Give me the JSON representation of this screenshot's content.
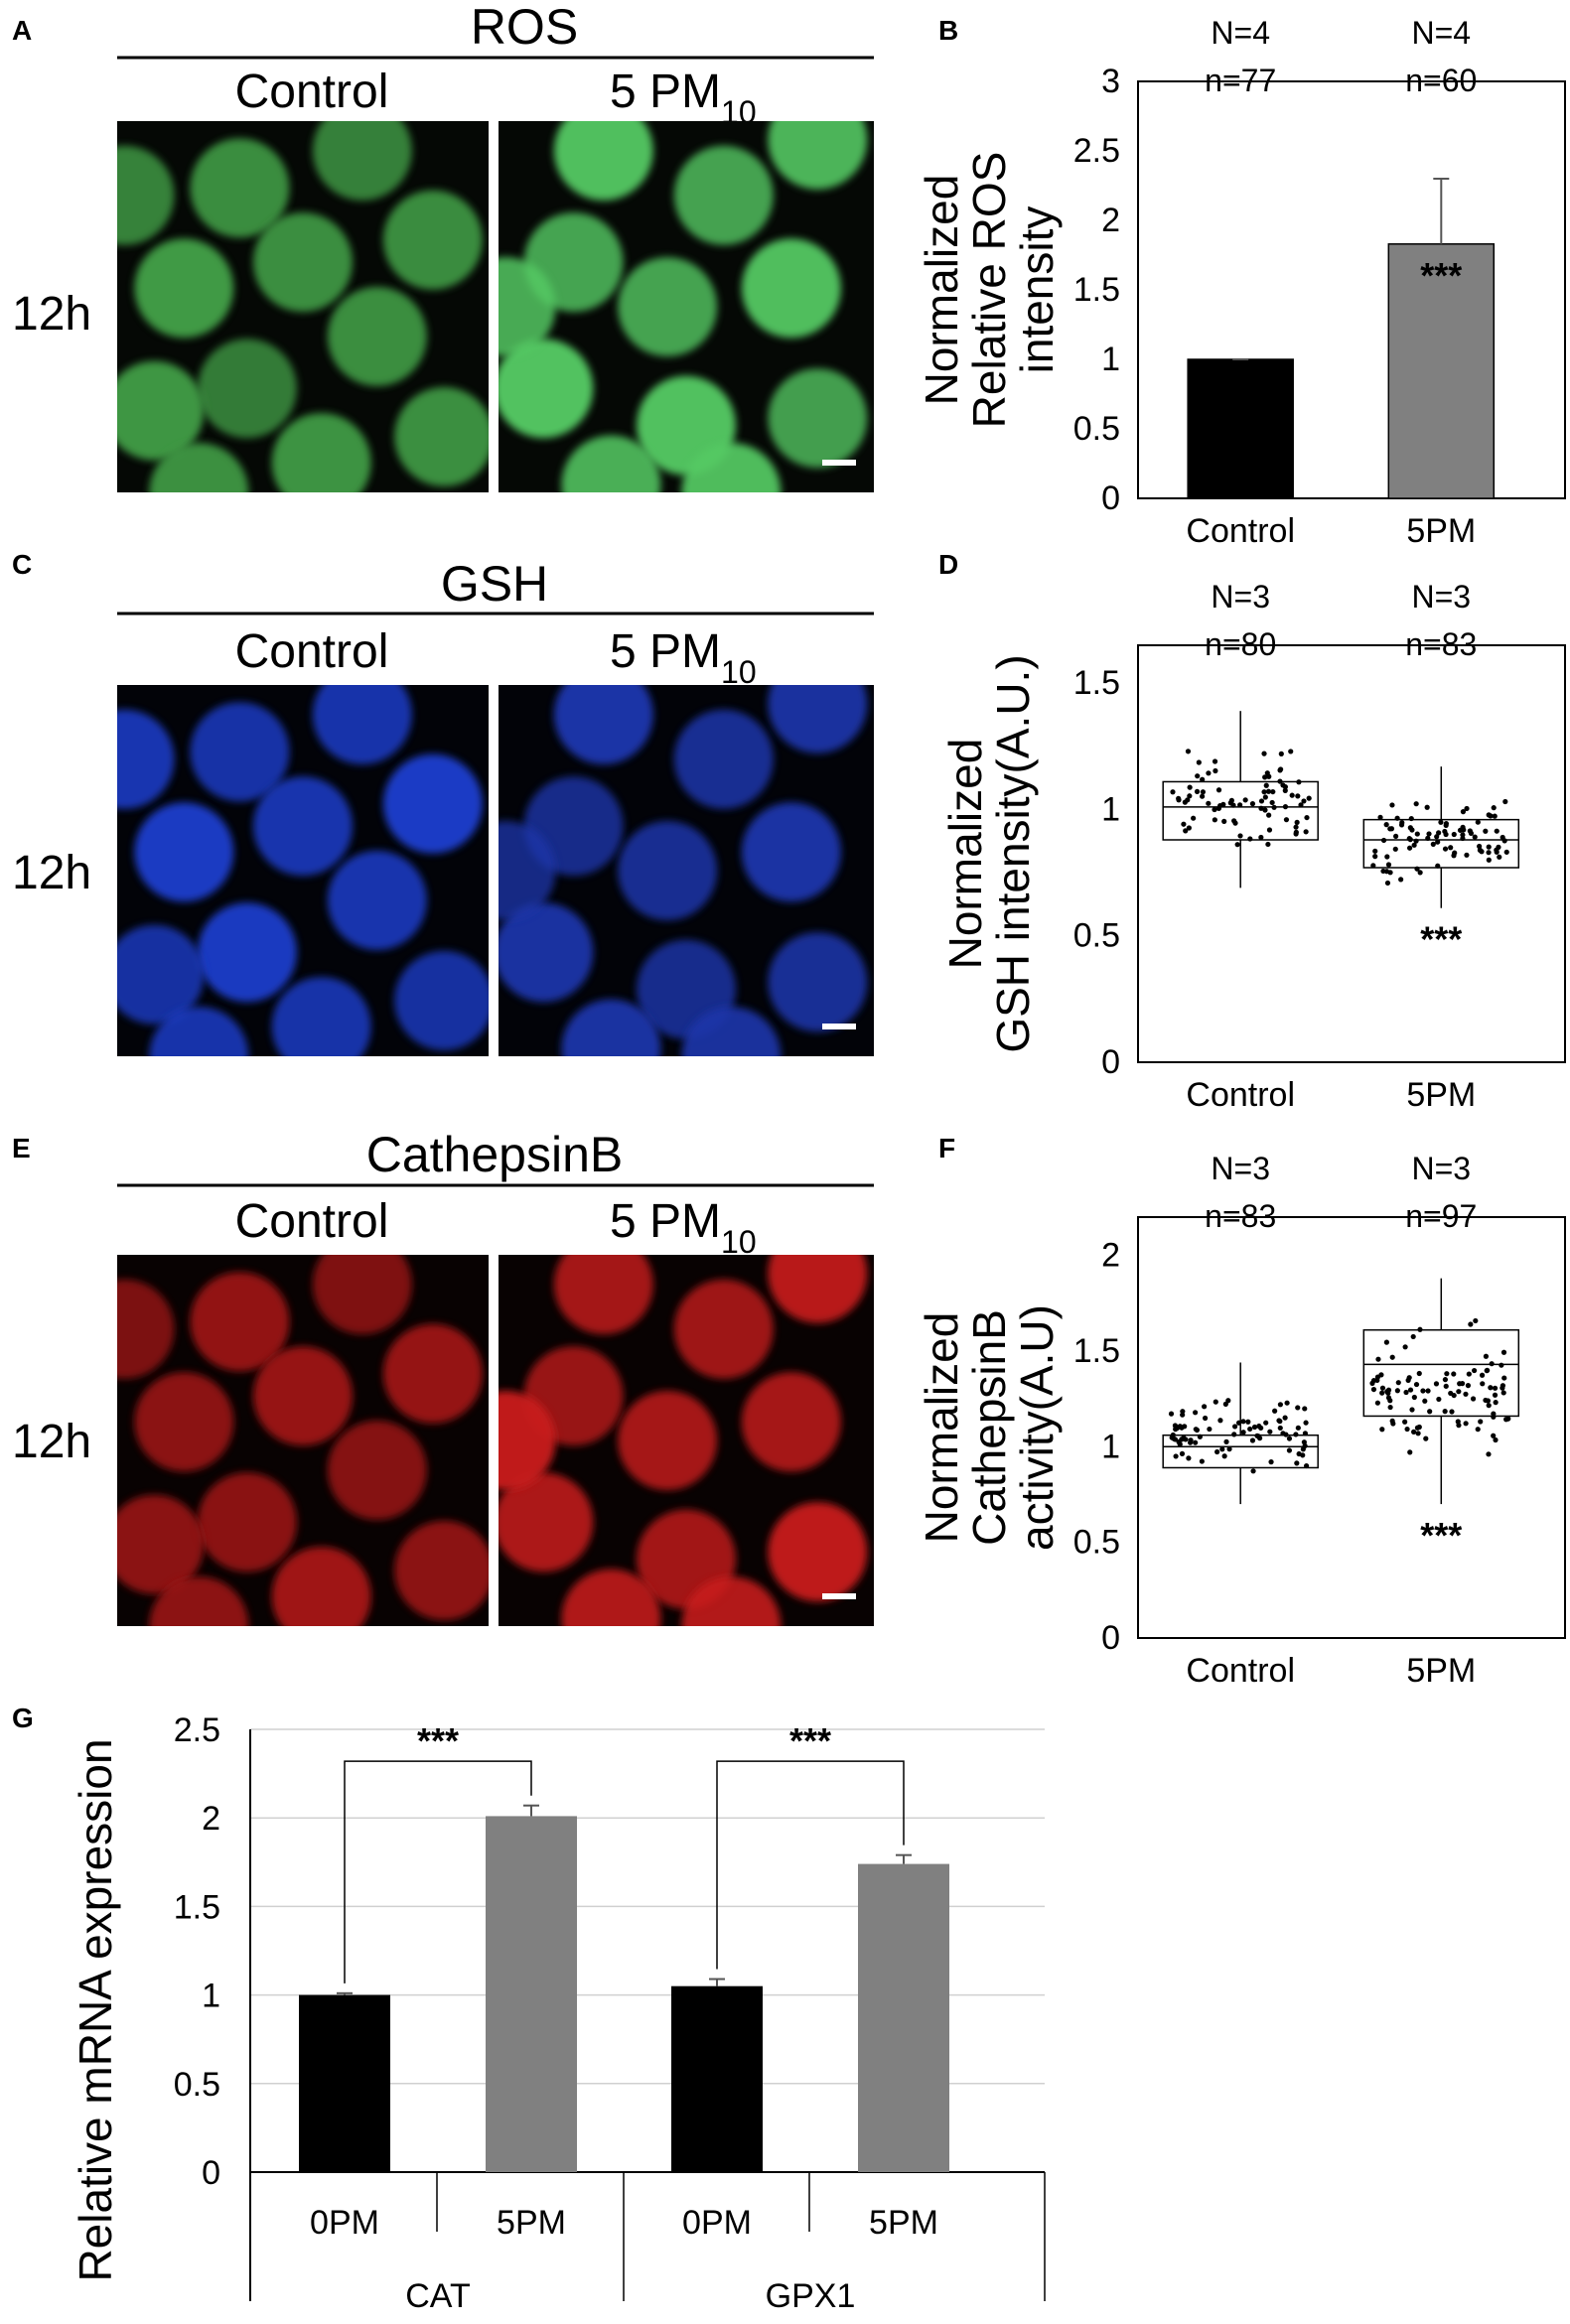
{
  "panels": {
    "A": {
      "letter": "A",
      "stain": "ROS",
      "conditions": [
        "Control",
        "5 PM",
        "10"
      ],
      "time": "12h",
      "colors": {
        "bg": "#050805",
        "cell": "#3f9a45",
        "bright": "#55c963"
      }
    },
    "C": {
      "letter": "C",
      "stain": "GSH",
      "conditions": [
        "Control",
        "5 PM",
        "10"
      ],
      "time": "12h",
      "colors": {
        "bg": "#020308",
        "cell": "#1c3ec9",
        "bright": "#1a35a8"
      }
    },
    "E": {
      "letter": "E",
      "stain": "CathepsinB",
      "conditions": [
        "Control",
        "5 PM",
        "10"
      ],
      "time": "12h",
      "colors": {
        "bg": "#080202",
        "cell": "#a21818",
        "bright": "#c81a1a"
      }
    },
    "B": {
      "letter": "B"
    },
    "D": {
      "letter": "D"
    },
    "F": {
      "letter": "F"
    },
    "G": {
      "letter": "G"
    }
  },
  "chart_data": [
    {
      "id": "B",
      "type": "bar",
      "categories": [
        "Control",
        "5PM"
      ],
      "values": [
        1.0,
        1.83
      ],
      "errors": [
        0.0,
        0.47
      ],
      "colors": [
        "#000000",
        "#808080"
      ],
      "ylabel": [
        "Normalized",
        "Relative ROS",
        "intensity"
      ],
      "ylim": [
        0,
        3
      ],
      "yticks": [
        "0",
        "0.5",
        "1",
        "1.5",
        "2",
        "2.5",
        "3"
      ],
      "N": [
        "N=4",
        "N=4"
      ],
      "n": [
        "n=77",
        "n=60"
      ],
      "significance": "***"
    },
    {
      "id": "D",
      "type": "boxplot",
      "categories": [
        "Control",
        "5PM"
      ],
      "box": [
        {
          "min": 0.69,
          "q1": 0.88,
          "median": 1.01,
          "q3": 1.11,
          "max": 1.39
        },
        {
          "min": 0.61,
          "q1": 0.77,
          "median": 0.88,
          "q3": 0.96,
          "max": 1.17
        }
      ],
      "ylabel": [
        "Normalized",
        "GSH intensity(A.U.)"
      ],
      "ylim": [
        0,
        1.65
      ],
      "yticks": [
        "0",
        "0.5",
        "1",
        "1.5"
      ],
      "N": [
        "N=3",
        "N=3"
      ],
      "n": [
        "n=80",
        "n=83"
      ],
      "significance": "***"
    },
    {
      "id": "F",
      "type": "boxplot",
      "categories": [
        "Control",
        "5PM"
      ],
      "box": [
        {
          "min": 0.7,
          "q1": 0.89,
          "median": 1.0,
          "q3": 1.06,
          "max": 1.44
        },
        {
          "min": 0.7,
          "q1": 1.16,
          "median": 1.43,
          "q3": 1.61,
          "max": 1.88
        }
      ],
      "ylabel": [
        "Normalized",
        "CathepsinB",
        "activity(A.U)"
      ],
      "ylim": [
        0,
        2.2
      ],
      "yticks": [
        "0",
        "0.5",
        "1",
        "1.5",
        "2"
      ],
      "N": [
        "N=3",
        "N=3"
      ],
      "n": [
        "n=83",
        "n=97"
      ],
      "significance": "***"
    },
    {
      "id": "G",
      "type": "bar",
      "categories": [
        "0PM",
        "5PM",
        "0PM",
        "5PM"
      ],
      "groups": [
        "CAT",
        "GPX1"
      ],
      "values": [
        1.0,
        2.01,
        1.05,
        1.74
      ],
      "errors": [
        0.01,
        0.06,
        0.04,
        0.05
      ],
      "colors": [
        "#000000",
        "#808080",
        "#000000",
        "#808080"
      ],
      "ylabel": "Relative mRNA expression",
      "ylim": [
        0,
        2.5
      ],
      "yticks": [
        "0",
        "0.5",
        "1",
        "1.5",
        "2",
        "2.5"
      ],
      "grid": true,
      "significance": [
        "***",
        "***"
      ]
    }
  ]
}
